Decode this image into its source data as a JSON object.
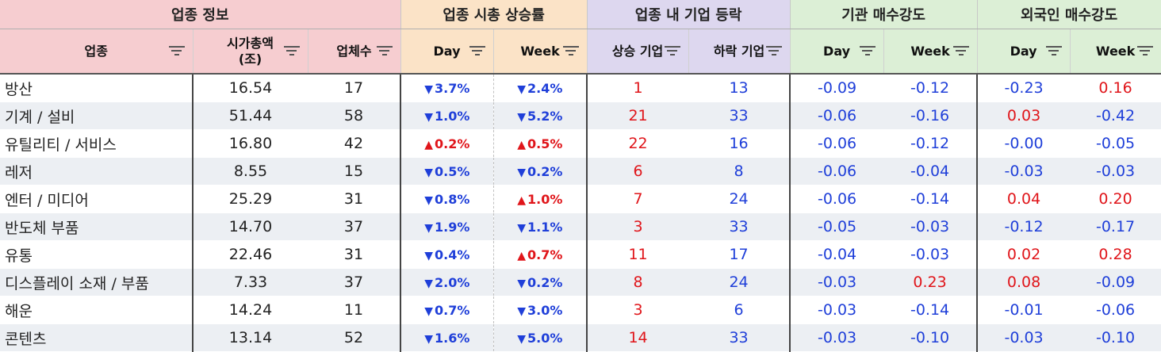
{
  "groups": {
    "info": "업종 정보",
    "cap_change": "업종 시총 상승률",
    "up_down": "업종 내 기업 등락",
    "inst": "기관 매수강도",
    "foreign": "외국인 매수강도"
  },
  "headers": {
    "sector": "업종",
    "market_cap": "시가총액\n(조)",
    "count": "업체수",
    "cap_day": "Day",
    "cap_week": "Week",
    "up": "상승 기업",
    "down": "하락 기업",
    "inst_day": "Day",
    "inst_week": "Week",
    "for_day": "Day",
    "for_week": "Week"
  },
  "colors": {
    "positive": "#e0151a",
    "negative": "#1f3fd9"
  },
  "rows": [
    {
      "sector": "방산",
      "cap": "16.54",
      "count": "17",
      "cap_day": "3.7%",
      "cap_day_dir": "down",
      "cap_week": "2.4%",
      "cap_week_dir": "down",
      "up": "1",
      "down": "13",
      "inst_day": "-0.09",
      "inst_week": "-0.12",
      "for_day": "-0.23",
      "for_week": "0.16"
    },
    {
      "sector": "기계 / 설비",
      "cap": "51.44",
      "count": "58",
      "cap_day": "1.0%",
      "cap_day_dir": "down",
      "cap_week": "5.2%",
      "cap_week_dir": "down",
      "up": "21",
      "down": "33",
      "inst_day": "-0.06",
      "inst_week": "-0.16",
      "for_day": "0.03",
      "for_week": "-0.42"
    },
    {
      "sector": "유틸리티 / 서비스",
      "cap": "16.80",
      "count": "42",
      "cap_day": "0.2%",
      "cap_day_dir": "up",
      "cap_week": "0.5%",
      "cap_week_dir": "up",
      "up": "22",
      "down": "16",
      "inst_day": "-0.06",
      "inst_week": "-0.12",
      "for_day": "-0.00",
      "for_week": "-0.05"
    },
    {
      "sector": "레저",
      "cap": "8.55",
      "count": "15",
      "cap_day": "0.5%",
      "cap_day_dir": "down",
      "cap_week": "0.2%",
      "cap_week_dir": "down",
      "up": "6",
      "down": "8",
      "inst_day": "-0.06",
      "inst_week": "-0.04",
      "for_day": "-0.03",
      "for_week": "-0.03"
    },
    {
      "sector": "엔터 / 미디어",
      "cap": "25.29",
      "count": "31",
      "cap_day": "0.8%",
      "cap_day_dir": "down",
      "cap_week": "1.0%",
      "cap_week_dir": "up",
      "up": "7",
      "down": "24",
      "inst_day": "-0.06",
      "inst_week": "-0.14",
      "for_day": "0.04",
      "for_week": "0.20"
    },
    {
      "sector": "반도체 부품",
      "cap": "14.70",
      "count": "37",
      "cap_day": "1.9%",
      "cap_day_dir": "down",
      "cap_week": "1.1%",
      "cap_week_dir": "down",
      "up": "3",
      "down": "33",
      "inst_day": "-0.05",
      "inst_week": "-0.03",
      "for_day": "-0.12",
      "for_week": "-0.17"
    },
    {
      "sector": "유통",
      "cap": "22.46",
      "count": "31",
      "cap_day": "0.4%",
      "cap_day_dir": "down",
      "cap_week": "0.7%",
      "cap_week_dir": "up",
      "up": "11",
      "down": "17",
      "inst_day": "-0.04",
      "inst_week": "-0.03",
      "for_day": "0.02",
      "for_week": "0.28"
    },
    {
      "sector": "디스플레이 소재 / 부품",
      "cap": "7.33",
      "count": "37",
      "cap_day": "2.0%",
      "cap_day_dir": "down",
      "cap_week": "0.2%",
      "cap_week_dir": "down",
      "up": "8",
      "down": "24",
      "inst_day": "-0.03",
      "inst_week": "0.23",
      "for_day": "0.08",
      "for_week": "-0.09"
    },
    {
      "sector": "해운",
      "cap": "14.24",
      "count": "11",
      "cap_day": "0.7%",
      "cap_day_dir": "down",
      "cap_week": "3.0%",
      "cap_week_dir": "down",
      "up": "3",
      "down": "6",
      "inst_day": "-0.03",
      "inst_week": "-0.14",
      "for_day": "-0.01",
      "for_week": "-0.06"
    },
    {
      "sector": "콘텐츠",
      "cap": "13.14",
      "count": "52",
      "cap_day": "1.6%",
      "cap_day_dir": "down",
      "cap_week": "5.0%",
      "cap_week_dir": "down",
      "up": "14",
      "down": "33",
      "inst_day": "-0.03",
      "inst_week": "-0.10",
      "for_day": "-0.03",
      "for_week": "-0.10"
    }
  ]
}
